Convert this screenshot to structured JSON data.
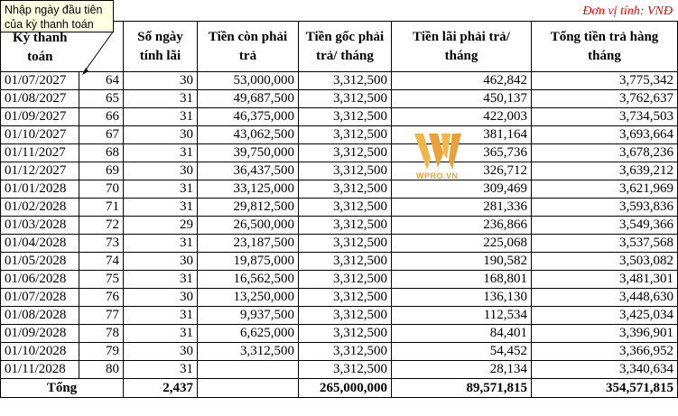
{
  "tooltip": {
    "text": "Nhập ngày đầu tiên của kỳ thanh toán"
  },
  "unit_note": "Đơn vị tính: VNĐ",
  "watermark": {
    "text": "WPRO.VN",
    "color": "#e9a13a"
  },
  "headers": {
    "ky_thanh_toan": "Kỳ thanh toán",
    "so_ngay": "Số ngày tính lãi",
    "tien_con": "Tiền còn phải trả",
    "tien_goc": "Tiền gốc phải trả/ tháng",
    "tien_lai": "Tiền lãi phải trả/ tháng",
    "tong_tien": "Tổng tiền trả hàng tháng"
  },
  "rows": [
    {
      "date": "01/07/2027",
      "idx": "64",
      "days": "30",
      "remaining": "53,000,000",
      "principal": "3,312,500",
      "interest": "462,842",
      "total": "3,775,342"
    },
    {
      "date": "01/08/2027",
      "idx": "65",
      "days": "31",
      "remaining": "49,687,500",
      "principal": "3,312,500",
      "interest": "450,137",
      "total": "3,762,637"
    },
    {
      "date": "01/09/2027",
      "idx": "66",
      "days": "31",
      "remaining": "46,375,000",
      "principal": "3,312,500",
      "interest": "422,003",
      "total": "3,734,503"
    },
    {
      "date": "01/10/2027",
      "idx": "67",
      "days": "30",
      "remaining": "43,062,500",
      "principal": "3,312,500",
      "interest": "381,164",
      "total": "3,693,664"
    },
    {
      "date": "01/11/2027",
      "idx": "68",
      "days": "31",
      "remaining": "39,750,000",
      "principal": "3,312,500",
      "interest": "365,736",
      "total": "3,678,236"
    },
    {
      "date": "01/12/2027",
      "idx": "69",
      "days": "30",
      "remaining": "36,437,500",
      "principal": "3,312,500",
      "interest": "326,712",
      "total": "3,639,212"
    },
    {
      "date": "01/01/2028",
      "idx": "70",
      "days": "31",
      "remaining": "33,125,000",
      "principal": "3,312,500",
      "interest": "309,469",
      "total": "3,621,969"
    },
    {
      "date": "01/02/2028",
      "idx": "71",
      "days": "31",
      "remaining": "29,812,500",
      "principal": "3,312,500",
      "interest": "281,336",
      "total": "3,593,836"
    },
    {
      "date": "01/03/2028",
      "idx": "72",
      "days": "29",
      "remaining": "26,500,000",
      "principal": "3,312,500",
      "interest": "236,866",
      "total": "3,549,366"
    },
    {
      "date": "01/04/2028",
      "idx": "73",
      "days": "31",
      "remaining": "23,187,500",
      "principal": "3,312,500",
      "interest": "225,068",
      "total": "3,537,568"
    },
    {
      "date": "01/05/2028",
      "idx": "74",
      "days": "30",
      "remaining": "19,875,000",
      "principal": "3,312,500",
      "interest": "190,582",
      "total": "3,503,082"
    },
    {
      "date": "01/06/2028",
      "idx": "75",
      "days": "31",
      "remaining": "16,562,500",
      "principal": "3,312,500",
      "interest": "168,801",
      "total": "3,481,301"
    },
    {
      "date": "01/07/2028",
      "idx": "76",
      "days": "30",
      "remaining": "13,250,000",
      "principal": "3,312,500",
      "interest": "136,130",
      "total": "3,448,630"
    },
    {
      "date": "01/08/2028",
      "idx": "77",
      "days": "31",
      "remaining": "9,937,500",
      "principal": "3,312,500",
      "interest": "112,534",
      "total": "3,425,034"
    },
    {
      "date": "01/09/2028",
      "idx": "78",
      "days": "31",
      "remaining": "6,625,000",
      "principal": "3,312,500",
      "interest": "84,401",
      "total": "3,396,901"
    },
    {
      "date": "01/10/2028",
      "idx": "79",
      "days": "30",
      "remaining": "3,312,500",
      "principal": "3,312,500",
      "interest": "54,452",
      "total": "3,366,952"
    },
    {
      "date": "01/11/2028",
      "idx": "80",
      "days": "31",
      "remaining": "",
      "principal": "3,312,500",
      "interest": "28,134",
      "total": "3,340,634"
    }
  ],
  "total_row": {
    "label": "Tổng",
    "days": "2,437",
    "principal": "265,000,000",
    "interest": "89,571,815",
    "total": "354,571,815"
  }
}
